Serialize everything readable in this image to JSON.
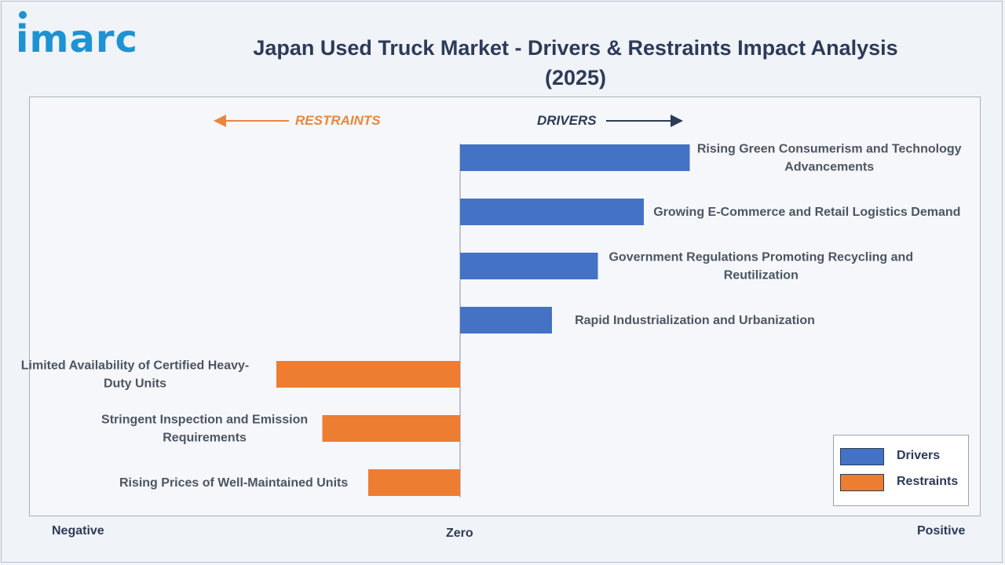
{
  "brand": {
    "logo_text": "imarc"
  },
  "title": "Japan Used Truck Market - Drivers & Restraints Impact Analysis (2025)",
  "direction_labels": {
    "restraints": "RESTRAINTS",
    "drivers": "DRIVERS"
  },
  "axis_words": {
    "negative": "Negative",
    "zero": "Zero",
    "positive": "Positive"
  },
  "colors": {
    "drivers": "#4472c4",
    "restraints": "#ed7d31",
    "text": "#2d3b57"
  },
  "legend": [
    {
      "label": "Drivers",
      "color": "#4472c4"
    },
    {
      "label": "Restraints",
      "color": "#ed7d31"
    }
  ],
  "chart_data": {
    "type": "bar",
    "orientation": "horizontal",
    "title": "Japan Used Truck Market - Drivers & Restraints Impact Analysis (2025)",
    "xlim": [
      -1,
      1
    ],
    "grid": false,
    "legend_position": "bottom-right",
    "series": [
      {
        "name": "Drivers",
        "color": "#4472c4"
      },
      {
        "name": "Restraints",
        "color": "#ed7d31"
      }
    ],
    "bars": [
      {
        "label": "Rising Green Consumerism and Technology Advancements",
        "lines": [
          "Rising Green Consumerism and Technology",
          "Advancements"
        ],
        "value": 0.5,
        "series": "Drivers"
      },
      {
        "label": "Growing E-Commerce and Retail Logistics Demand",
        "lines": [
          "Growing E-Commerce and Retail Logistics Demand"
        ],
        "value": 0.4,
        "series": "Drivers"
      },
      {
        "label": "Government Regulations Promoting Recycling and Reutilization",
        "lines": [
          "Government Regulations Promoting Recycling and",
          "Reutilization"
        ],
        "value": 0.3,
        "series": "Drivers"
      },
      {
        "label": "Rapid Industrialization and Urbanization",
        "lines": [
          "Rapid Industrialization and Urbanization"
        ],
        "value": 0.2,
        "series": "Drivers"
      },
      {
        "label": "Limited Availability of Certified Heavy-Duty Units",
        "lines": [
          "Limited Availability of Certified Heavy-",
          "Duty Units"
        ],
        "value": -0.4,
        "series": "Restraints"
      },
      {
        "label": "Stringent Inspection and Emission Requirements",
        "lines": [
          "Stringent Inspection and Emission",
          "Requirements"
        ],
        "value": -0.3,
        "series": "Restraints"
      },
      {
        "label": "Rising Prices of Well-Maintained Units",
        "lines": [
          "Rising Prices of Well-Maintained Units"
        ],
        "value": -0.2,
        "series": "Restraints"
      }
    ]
  }
}
